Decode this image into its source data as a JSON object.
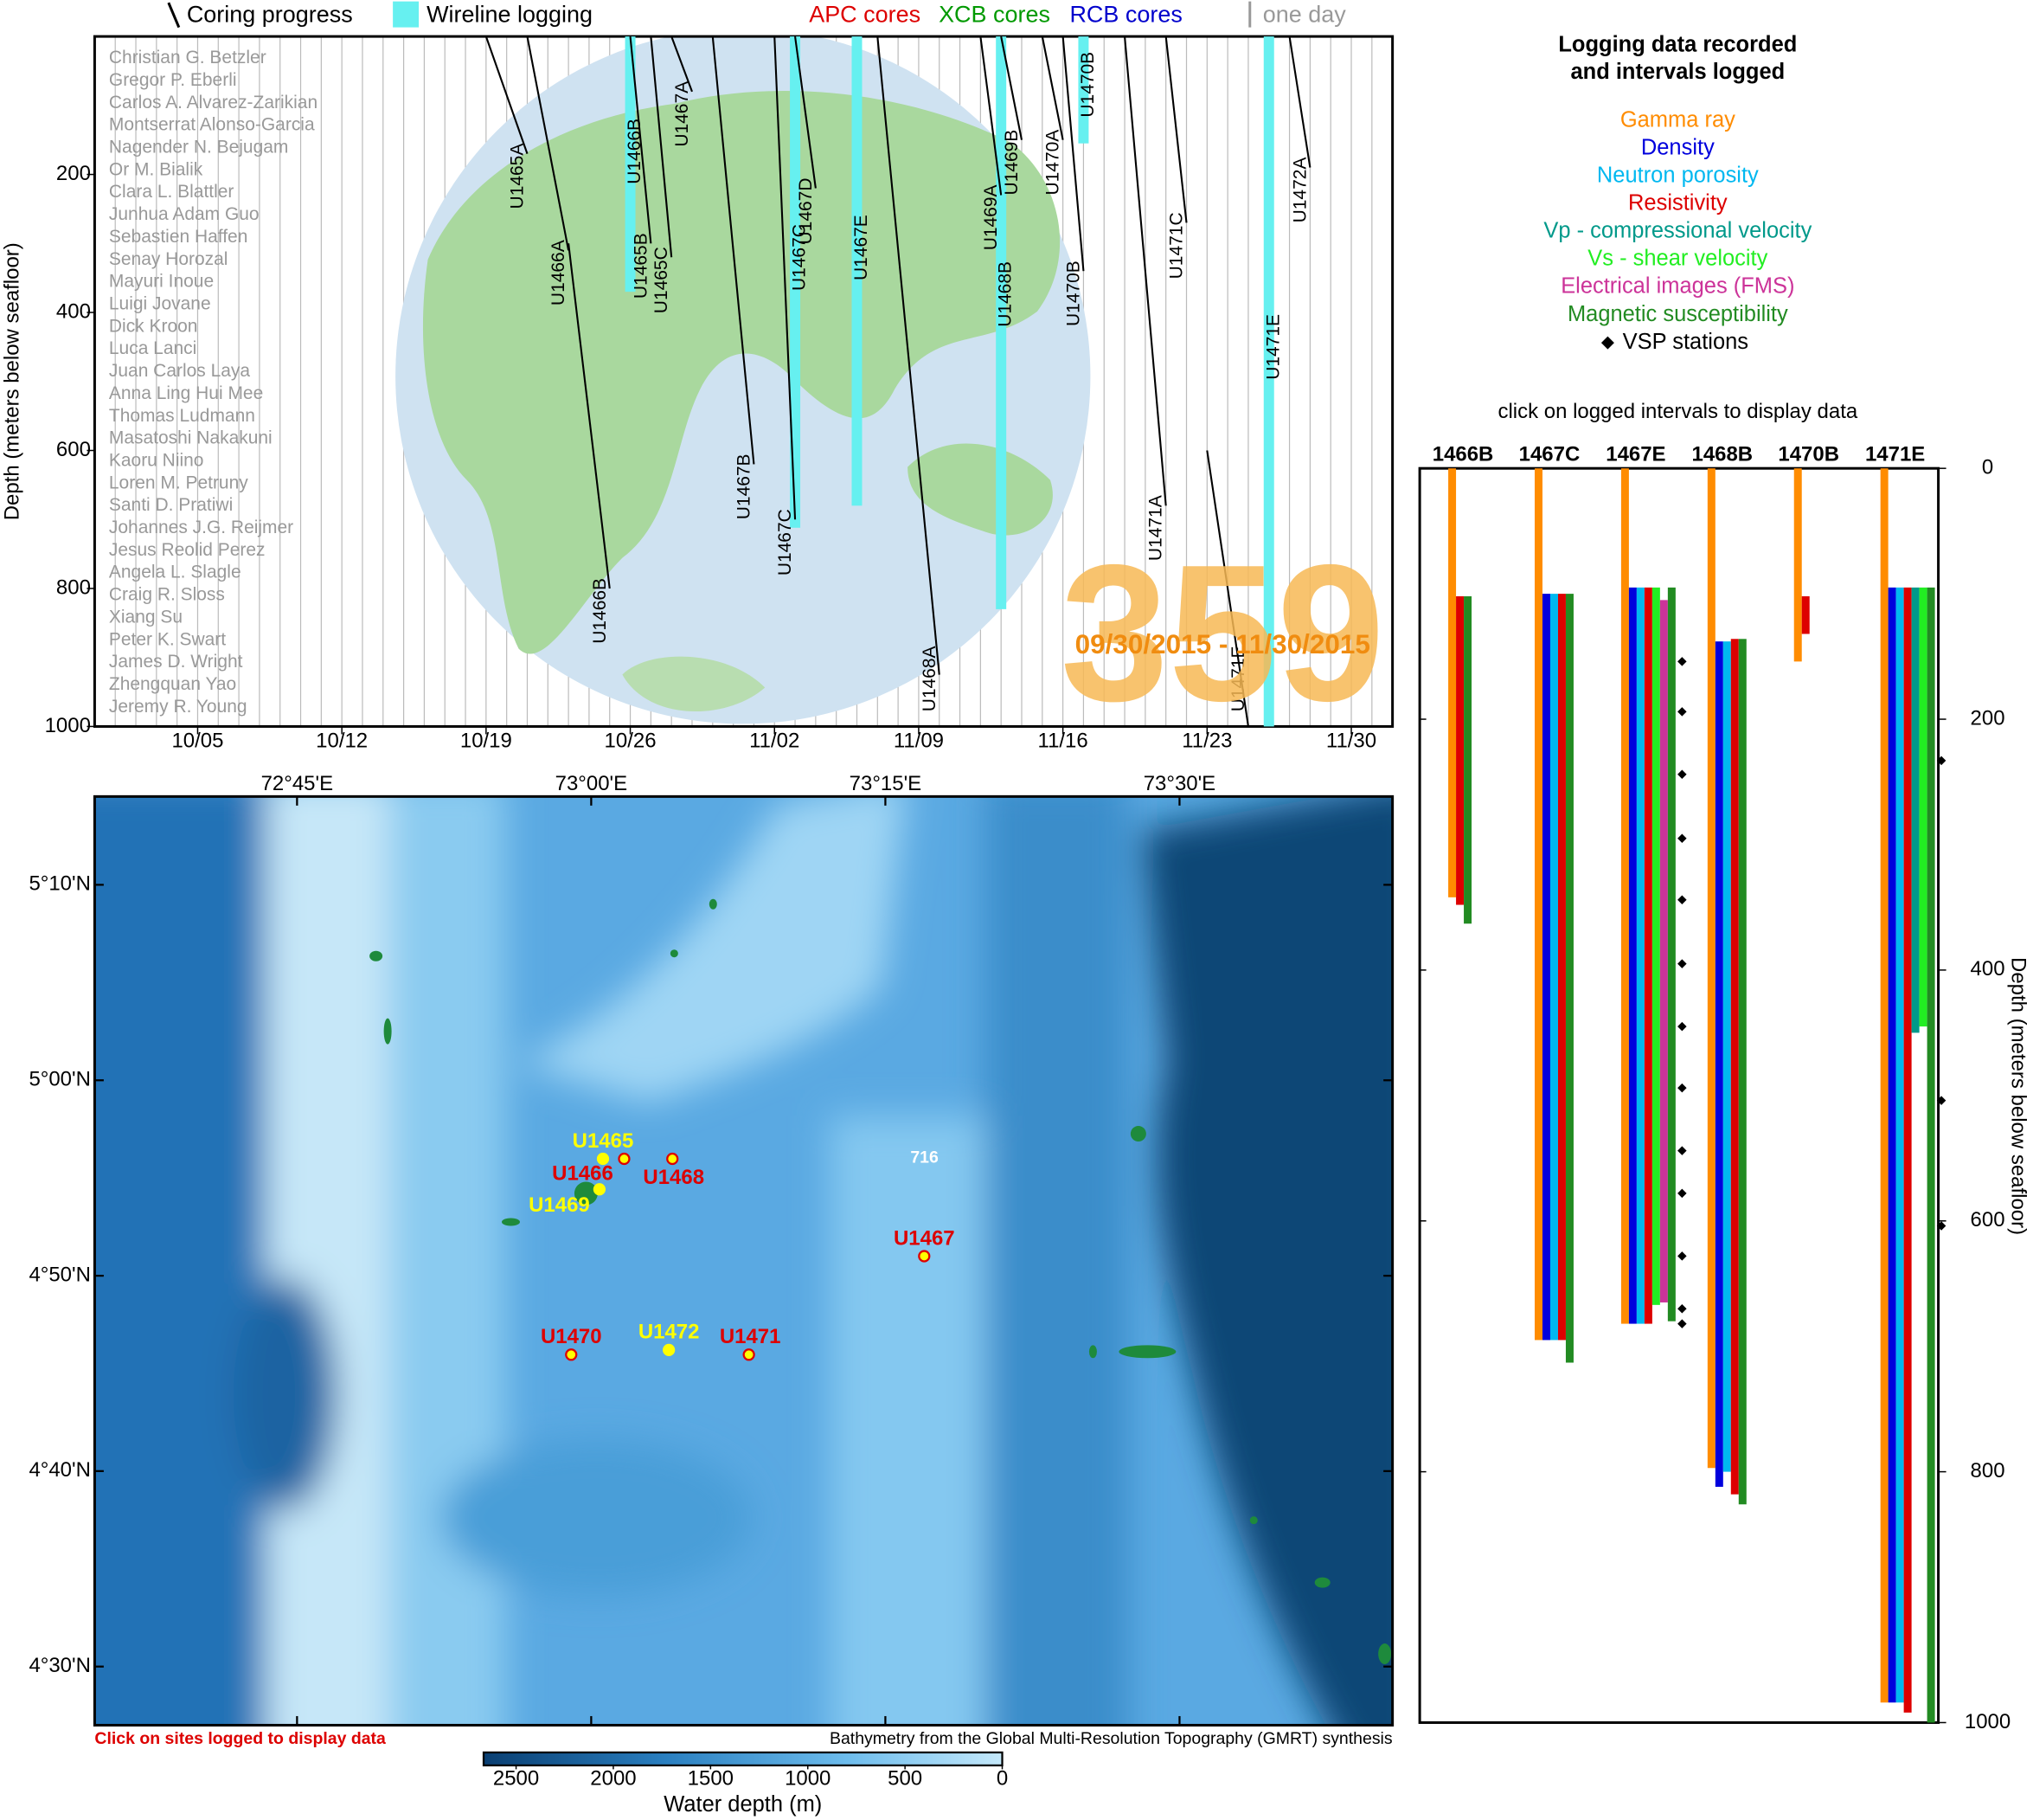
{
  "chart_data": [
    {
      "type": "timeline",
      "legend": [
        {
          "label": "Coring progress",
          "color": "#000000"
        },
        {
          "label": "Wireline logging",
          "color": "#66f0f0"
        },
        {
          "label": "APC cores",
          "color": "#dd0000"
        },
        {
          "label": "XCB cores",
          "color": "#009900"
        },
        {
          "label": "RCB cores",
          "color": "#0000cc"
        },
        {
          "label": "one day",
          "color": "#999999"
        }
      ],
      "y_label": "Depth (meters below seafloor)",
      "xlim": [
        "09/30",
        "12/02"
      ],
      "xticks": [
        "10/05",
        "10/12",
        "10/19",
        "10/26",
        "11/02",
        "11/09",
        "11/16",
        "11/23",
        "11/30"
      ],
      "ylim": [
        0,
        1000
      ],
      "y_inverted": true,
      "yticks": [
        200,
        400,
        600,
        800,
        1000
      ],
      "participants": [
        "Christian G. Betzler",
        "Gregor P. Eberli",
        "Carlos A. Alvarez-Zarikian",
        "Montserrat Alonso-Garcia",
        "Nagender N. Bejugam",
        "Or M. Bialik",
        "Clara L. Blattler",
        "Junhua Adam Guo",
        "Sebastien Haffen",
        "Senay Horozal",
        "Mayuri Inoue",
        "Luigi Jovane",
        "Dick Kroon",
        "Luca Lanci",
        "Juan Carlos Laya",
        "Anna Ling Hui Mee",
        "Thomas Ludmann",
        "Masatoshi Nakakuni",
        "Kaoru Niino",
        "Loren M. Petruny",
        "Santi D. Pratiwi",
        "Johannes J.G. Reijmer",
        "Jesus Reolid Perez",
        "Angela L. Slagle",
        "Craig R. Sloss",
        "Xiang Su",
        "Peter K. Swart",
        "James D. Wright",
        "Zhengquan Yao",
        "Jeremy R. Young"
      ],
      "expedition": "359",
      "date_range": "09/30/2015 - 11/30/2015",
      "series": [
        {
          "name": "U1465A",
          "x": [
            "10/19",
            "10/21"
          ],
          "values": [
            0,
            170
          ]
        },
        {
          "name": "U1466A",
          "x": [
            "10/21",
            "10/23"
          ],
          "values": [
            0,
            310
          ]
        },
        {
          "name": "U1466B",
          "x": [
            "10/23",
            "10/25"
          ],
          "values": [
            300,
            800
          ]
        },
        {
          "name": "U1465B",
          "x": [
            "10/26",
            "10/27"
          ],
          "values": [
            0,
            300
          ]
        },
        {
          "name": "U1465C",
          "x": [
            "10/27",
            "10/28"
          ],
          "values": [
            0,
            320
          ]
        },
        {
          "name": "U1467A",
          "x": [
            "10/28",
            "10/29"
          ],
          "values": [
            0,
            80
          ]
        },
        {
          "name": "U1467B",
          "x": [
            "10/30",
            "11/01"
          ],
          "values": [
            0,
            620
          ]
        },
        {
          "name": "U1467C",
          "x": [
            "11/02",
            "11/03"
          ],
          "values": [
            0,
            700
          ]
        },
        {
          "name": "U1467D",
          "x": [
            "11/03",
            "11/04"
          ],
          "values": [
            0,
            220
          ]
        },
        {
          "name": "U1468A",
          "x": [
            "11/07",
            "11/10"
          ],
          "values": [
            0,
            925
          ]
        },
        {
          "name": "U1469A",
          "x": [
            "11/12",
            "11/13"
          ],
          "values": [
            0,
            230
          ]
        },
        {
          "name": "U1469B",
          "x": [
            "11/13",
            "11/14"
          ],
          "values": [
            0,
            150
          ]
        },
        {
          "name": "U1470A",
          "x": [
            "11/15",
            "11/16"
          ],
          "values": [
            0,
            150
          ]
        },
        {
          "name": "U1470B",
          "x": [
            "11/16",
            "11/17"
          ],
          "values": [
            0,
            340
          ]
        },
        {
          "name": "U1471A",
          "x": [
            "11/19",
            "11/21"
          ],
          "values": [
            0,
            680
          ]
        },
        {
          "name": "U1471C",
          "x": [
            "11/21",
            "11/22"
          ],
          "values": [
            0,
            270
          ]
        },
        {
          "name": "U1471E",
          "x": [
            "11/23",
            "11/25"
          ],
          "values": [
            600,
            1000
          ]
        },
        {
          "name": "U1472A",
          "x": [
            "11/27",
            "11/28"
          ],
          "values": [
            0,
            190
          ]
        }
      ],
      "wireline": [
        {
          "name": "U1466B",
          "x": "10/26",
          "values": [
            0,
            370
          ]
        },
        {
          "name": "U1467C",
          "x": "11/03",
          "values": [
            0,
            712
          ]
        },
        {
          "name": "U1467E",
          "x": "11/06",
          "values": [
            0,
            680
          ]
        },
        {
          "name": "U1468B",
          "x": "11/13",
          "values": [
            0,
            830
          ]
        },
        {
          "name": "U1470B",
          "x": "11/17",
          "values": [
            0,
            155
          ]
        },
        {
          "name": "U1471E",
          "x": "11/26",
          "values": [
            0,
            1000
          ]
        }
      ]
    },
    {
      "type": "map",
      "xlim": [
        72.578,
        73.681
      ],
      "ylim": [
        4.45,
        5.242
      ],
      "xticks": [
        {
          "value": 72.75,
          "label": "72°45'E"
        },
        {
          "value": 73.0,
          "label": "73°00'E"
        },
        {
          "value": 73.25,
          "label": "73°15'E"
        },
        {
          "value": 73.5,
          "label": "73°30'E"
        }
      ],
      "yticks": [
        {
          "value": 5.1667,
          "label": "5°10'N"
        },
        {
          "value": 5.0,
          "label": "5°00'N"
        },
        {
          "value": 4.8333,
          "label": "4°50'N"
        },
        {
          "value": 4.6667,
          "label": "4°40'N"
        },
        {
          "value": 4.5,
          "label": "4°30'N"
        }
      ],
      "sites": [
        {
          "name": "U1465",
          "lon": 73.01,
          "lat": 4.933,
          "color": "#ffff00"
        },
        {
          "name": "U1466",
          "lon": 73.028,
          "lat": 4.933,
          "color": "#dd0000"
        },
        {
          "name": "U1468",
          "lon": 73.069,
          "lat": 4.933,
          "color": "#dd0000"
        },
        {
          "name": "U1469",
          "lon": 73.007,
          "lat": 4.907,
          "color": "#ffff00"
        },
        {
          "name": "U1467",
          "lon": 73.283,
          "lat": 4.85,
          "color": "#dd0000"
        },
        {
          "name": "U1470",
          "lon": 72.983,
          "lat": 4.766,
          "color": "#dd0000"
        },
        {
          "name": "U1472",
          "lon": 73.066,
          "lat": 4.77,
          "color": "#ffff00"
        },
        {
          "name": "U1471",
          "lon": 73.134,
          "lat": 4.766,
          "color": "#dd0000"
        }
      ],
      "annotation": "716",
      "note": "Click on sites logged to display data",
      "source": "Bathymetry from the Global Multi-Resolution Topography (GMRT) synthesis",
      "colorbar": {
        "label": "Water depth (m)",
        "xlim": [
          2667,
          0
        ],
        "xticks": [
          2500,
          2000,
          1500,
          1000,
          500,
          0
        ]
      }
    },
    {
      "type": "range-bar",
      "title": [
        "Logging data recorded",
        "and intervals logged"
      ],
      "subtitle": "click on logged intervals to display data",
      "categories": [
        "1466B",
        "1467C",
        "1467E",
        "1468B",
        "1470B",
        "1471E"
      ],
      "ylim": [
        0,
        1000
      ],
      "y_inverted": true,
      "yticks": [
        0,
        200,
        400,
        600,
        800,
        1000
      ],
      "y_label": "Depth (meters below seafloor)",
      "series": [
        {
          "name": "Gamma ray",
          "color": "#ff8c00",
          "values": [
            [
              0,
              342
            ],
            [
              0,
              695
            ],
            [
              0,
              682
            ],
            [
              0,
              797
            ],
            [
              0,
              154
            ],
            [
              0,
              984
            ]
          ]
        },
        {
          "name": "Density",
          "color": "#0000dd",
          "values": [
            null,
            [
              100,
              695
            ],
            [
              95,
              682
            ],
            [
              138,
              812
            ],
            null,
            [
              95,
              984
            ]
          ]
        },
        {
          "name": "Neutron porosity",
          "color": "#00b8f0",
          "values": [
            null,
            [
              100,
              695
            ],
            [
              95,
              682
            ],
            [
              138,
              800
            ],
            null,
            [
              95,
              984
            ]
          ]
        },
        {
          "name": "Resistivity",
          "color": "#dd0000",
          "values": [
            [
              102,
              348
            ],
            [
              100,
              695
            ],
            [
              95,
              682
            ],
            [
              136,
              818
            ],
            [
              102,
              132
            ],
            [
              95,
              992
            ]
          ]
        },
        {
          "name": "Vp - compressional velocity",
          "color": "#00998a",
          "values": [
            null,
            null,
            null,
            null,
            null,
            [
              95,
              450
            ]
          ]
        },
        {
          "name": "Vs - shear velocity",
          "color": "#22ee22",
          "values": [
            null,
            null,
            [
              95,
              667
            ],
            null,
            null,
            [
              95,
              445
            ]
          ]
        },
        {
          "name": "Electrical images (FMS)",
          "color": "#cc3399",
          "values": [
            null,
            null,
            [
              105,
              665
            ],
            null,
            null,
            null
          ]
        },
        {
          "name": "Magnetic susceptibility",
          "color": "#228b22",
          "values": [
            [
              102,
              363
            ],
            [
              100,
              713
            ],
            [
              95,
              680
            ],
            [
              136,
              826
            ],
            null,
            [
              95,
              1000
            ]
          ]
        }
      ],
      "markers": {
        "name": "VSP stations",
        "color": "#000000",
        "values": [
          null,
          null,
          [
            154,
            194,
            244,
            295,
            344,
            395,
            445,
            494,
            544,
            578,
            628,
            670,
            682
          ],
          null,
          null,
          [
            233,
            504,
            604
          ]
        ]
      }
    }
  ]
}
